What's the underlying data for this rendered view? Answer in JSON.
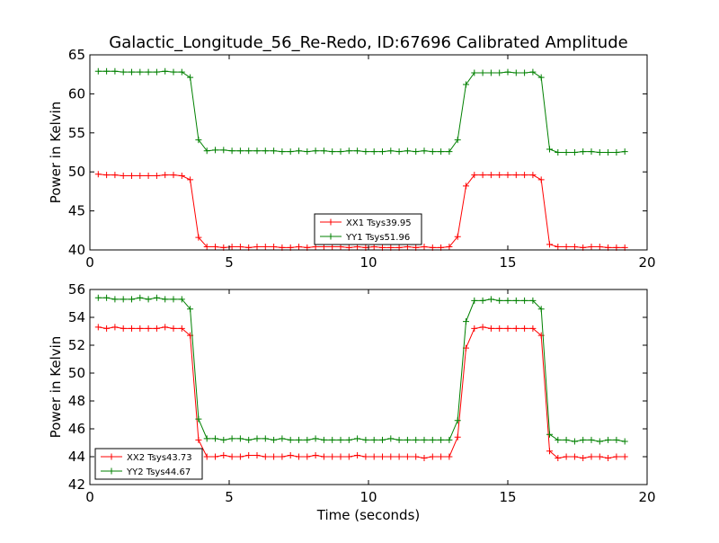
{
  "figure": {
    "title": "Galactic_Longitude_56_Re-Redo, ID:67696 Calibrated Amplitude",
    "xlabel": "Time (seconds)"
  },
  "chart_data": [
    {
      "type": "line",
      "title": "Galactic_Longitude_56_Re-Redo, ID:67696 Calibrated Amplitude",
      "xlabel": "",
      "ylabel": "Power in Kelvin",
      "xlim": [
        0,
        20
      ],
      "ylim": [
        40,
        65
      ],
      "xticks": [
        0,
        5,
        10,
        15,
        20
      ],
      "yticks": [
        40,
        45,
        50,
        55,
        60,
        65
      ],
      "grid": false,
      "legend": "bottom-center",
      "x": [
        0.3,
        0.6,
        0.9,
        1.2,
        1.5,
        1.8,
        2.1,
        2.4,
        2.7,
        3.0,
        3.3,
        3.6,
        3.9,
        4.2,
        4.5,
        4.8,
        5.1,
        5.4,
        5.7,
        6.0,
        6.3,
        6.6,
        6.9,
        7.2,
        7.5,
        7.8,
        8.1,
        8.4,
        8.7,
        9.0,
        9.3,
        9.6,
        9.9,
        10.2,
        10.5,
        10.8,
        11.1,
        11.4,
        11.7,
        12.0,
        12.3,
        12.6,
        12.9,
        13.2,
        13.5,
        13.8,
        14.1,
        14.4,
        14.7,
        15.0,
        15.3,
        15.6,
        15.9,
        16.2,
        16.5,
        16.8,
        17.1,
        17.4,
        17.7,
        18.0,
        18.3,
        18.6,
        18.9,
        19.2
      ],
      "series": [
        {
          "name": "XX1 Tsys39.95",
          "color": "#ff0000",
          "values": [
            49.7,
            49.6,
            49.6,
            49.5,
            49.5,
            49.5,
            49.5,
            49.5,
            49.6,
            49.6,
            49.5,
            49.0,
            41.6,
            40.4,
            40.4,
            40.3,
            40.4,
            40.4,
            40.3,
            40.4,
            40.4,
            40.4,
            40.3,
            40.3,
            40.4,
            40.3,
            40.4,
            40.4,
            40.4,
            40.4,
            40.3,
            40.4,
            40.3,
            40.4,
            40.3,
            40.3,
            40.3,
            40.4,
            40.3,
            40.4,
            40.3,
            40.3,
            40.4,
            41.7,
            48.2,
            49.6,
            49.6,
            49.6,
            49.6,
            49.6,
            49.6,
            49.6,
            49.6,
            49.0,
            40.7,
            40.4,
            40.4,
            40.4,
            40.3,
            40.4,
            40.4,
            40.3,
            40.3,
            40.3
          ]
        },
        {
          "name": "YY1 Tsys51.96",
          "color": "#008000",
          "values": [
            62.9,
            62.9,
            62.9,
            62.8,
            62.8,
            62.8,
            62.8,
            62.8,
            62.9,
            62.8,
            62.8,
            62.1,
            54.1,
            52.7,
            52.8,
            52.8,
            52.7,
            52.7,
            52.7,
            52.7,
            52.7,
            52.7,
            52.6,
            52.6,
            52.7,
            52.6,
            52.7,
            52.7,
            52.6,
            52.6,
            52.7,
            52.7,
            52.6,
            52.6,
            52.6,
            52.7,
            52.6,
            52.7,
            52.6,
            52.7,
            52.6,
            52.6,
            52.6,
            54.1,
            61.2,
            62.7,
            62.7,
            62.7,
            62.7,
            62.8,
            62.7,
            62.7,
            62.8,
            62.1,
            52.9,
            52.5,
            52.5,
            52.5,
            52.6,
            52.6,
            52.5,
            52.5,
            52.5,
            52.6
          ]
        }
      ]
    },
    {
      "type": "line",
      "title": "",
      "xlabel": "Time (seconds)",
      "ylabel": "Power in Kelvin",
      "xlim": [
        0,
        20
      ],
      "ylim": [
        42,
        56
      ],
      "xticks": [
        0,
        5,
        10,
        15,
        20
      ],
      "yticks": [
        42,
        44,
        46,
        48,
        50,
        52,
        54,
        56
      ],
      "grid": false,
      "legend": "bottom-left",
      "x": [
        0.3,
        0.6,
        0.9,
        1.2,
        1.5,
        1.8,
        2.1,
        2.4,
        2.7,
        3.0,
        3.3,
        3.6,
        3.9,
        4.2,
        4.5,
        4.8,
        5.1,
        5.4,
        5.7,
        6.0,
        6.3,
        6.6,
        6.9,
        7.2,
        7.5,
        7.8,
        8.1,
        8.4,
        8.7,
        9.0,
        9.3,
        9.6,
        9.9,
        10.2,
        10.5,
        10.8,
        11.1,
        11.4,
        11.7,
        12.0,
        12.3,
        12.6,
        12.9,
        13.2,
        13.5,
        13.8,
        14.1,
        14.4,
        14.7,
        15.0,
        15.3,
        15.6,
        15.9,
        16.2,
        16.5,
        16.8,
        17.1,
        17.4,
        17.7,
        18.0,
        18.3,
        18.6,
        18.9,
        19.2
      ],
      "series": [
        {
          "name": "XX2 Tsys43.73",
          "color": "#ff0000",
          "values": [
            53.3,
            53.2,
            53.3,
            53.2,
            53.2,
            53.2,
            53.2,
            53.2,
            53.3,
            53.2,
            53.2,
            52.7,
            45.2,
            44.0,
            44.0,
            44.1,
            44.0,
            44.0,
            44.1,
            44.1,
            44.0,
            44.0,
            44.0,
            44.1,
            44.0,
            44.0,
            44.1,
            44.0,
            44.0,
            44.0,
            44.0,
            44.1,
            44.0,
            44.0,
            44.0,
            44.0,
            44.0,
            44.0,
            44.0,
            43.9,
            44.0,
            44.0,
            44.0,
            45.4,
            51.8,
            53.2,
            53.3,
            53.2,
            53.2,
            53.2,
            53.2,
            53.2,
            53.2,
            52.7,
            44.4,
            43.9,
            44.0,
            44.0,
            43.9,
            44.0,
            44.0,
            43.9,
            44.0,
            44.0
          ]
        },
        {
          "name": "YY2 Tsys44.67",
          "color": "#008000",
          "values": [
            55.4,
            55.4,
            55.3,
            55.3,
            55.3,
            55.4,
            55.3,
            55.4,
            55.3,
            55.3,
            55.3,
            54.6,
            46.7,
            45.3,
            45.3,
            45.2,
            45.3,
            45.3,
            45.2,
            45.3,
            45.3,
            45.2,
            45.3,
            45.2,
            45.2,
            45.2,
            45.3,
            45.2,
            45.2,
            45.2,
            45.2,
            45.3,
            45.2,
            45.2,
            45.2,
            45.3,
            45.2,
            45.2,
            45.2,
            45.2,
            45.2,
            45.2,
            45.2,
            46.6,
            53.7,
            55.2,
            55.2,
            55.3,
            55.2,
            55.2,
            55.2,
            55.2,
            55.2,
            54.6,
            45.6,
            45.2,
            45.2,
            45.1,
            45.2,
            45.2,
            45.1,
            45.2,
            45.2,
            45.1
          ]
        }
      ]
    }
  ]
}
